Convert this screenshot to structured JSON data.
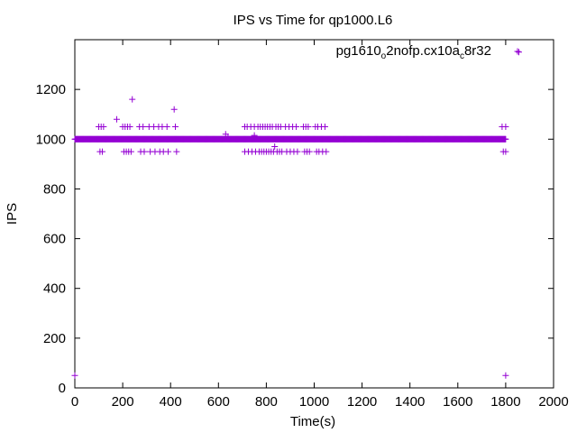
{
  "chart_data": {
    "type": "scatter",
    "title": "IPS vs Time for qp1000.L6",
    "xlabel": "Time(s)",
    "ylabel": "IPS",
    "xlim": [
      0,
      2000
    ],
    "ylim": [
      0,
      1400
    ],
    "xticks": [
      0,
      200,
      400,
      600,
      800,
      1000,
      1200,
      1400,
      1600,
      1800,
      2000
    ],
    "yticks": [
      0,
      200,
      400,
      600,
      800,
      1000,
      1200
    ],
    "grid": false,
    "legend_position": "top-right",
    "marker": "plus",
    "color": "#9400d3",
    "series": [
      {
        "name_parts": [
          "pg1610",
          "o",
          "2nofp.cx10a",
          "c",
          "8r32"
        ],
        "baseline": {
          "x_start": 0,
          "x_end": 1800,
          "step": 2,
          "y": 1000
        },
        "points": [
          [
            0,
            50
          ],
          [
            1800,
            50
          ],
          [
            1855,
            1350
          ],
          [
            240,
            1160
          ],
          [
            415,
            1120
          ],
          [
            175,
            1080
          ],
          [
            630,
            1020
          ],
          [
            640,
            1010
          ],
          [
            750,
            1015
          ],
          [
            835,
            970
          ],
          [
            100,
            1050
          ],
          [
            105,
            950
          ],
          [
            110,
            1050
          ],
          [
            115,
            950
          ],
          [
            120,
            1050
          ],
          [
            200,
            1050
          ],
          [
            205,
            950
          ],
          [
            210,
            1050
          ],
          [
            215,
            950
          ],
          [
            220,
            1050
          ],
          [
            225,
            950
          ],
          [
            230,
            1050
          ],
          [
            235,
            950
          ],
          [
            270,
            1050
          ],
          [
            275,
            950
          ],
          [
            285,
            1050
          ],
          [
            290,
            950
          ],
          [
            310,
            1050
          ],
          [
            315,
            950
          ],
          [
            330,
            1050
          ],
          [
            335,
            950
          ],
          [
            350,
            1050
          ],
          [
            355,
            950
          ],
          [
            365,
            1050
          ],
          [
            370,
            950
          ],
          [
            385,
            1050
          ],
          [
            390,
            950
          ],
          [
            420,
            1050
          ],
          [
            425,
            950
          ],
          [
            710,
            1050
          ],
          [
            710,
            950
          ],
          [
            720,
            1050
          ],
          [
            725,
            950
          ],
          [
            735,
            1050
          ],
          [
            740,
            950
          ],
          [
            750,
            1050
          ],
          [
            755,
            950
          ],
          [
            765,
            1050
          ],
          [
            770,
            950
          ],
          [
            775,
            1050
          ],
          [
            780,
            950
          ],
          [
            785,
            1050
          ],
          [
            790,
            950
          ],
          [
            795,
            1050
          ],
          [
            800,
            950
          ],
          [
            805,
            1050
          ],
          [
            810,
            950
          ],
          [
            815,
            1050
          ],
          [
            820,
            950
          ],
          [
            825,
            1050
          ],
          [
            830,
            950
          ],
          [
            840,
            1050
          ],
          [
            845,
            950
          ],
          [
            850,
            1050
          ],
          [
            855,
            950
          ],
          [
            860,
            1050
          ],
          [
            865,
            950
          ],
          [
            880,
            1050
          ],
          [
            885,
            950
          ],
          [
            895,
            1050
          ],
          [
            900,
            950
          ],
          [
            910,
            1050
          ],
          [
            915,
            950
          ],
          [
            925,
            1050
          ],
          [
            930,
            950
          ],
          [
            955,
            1050
          ],
          [
            960,
            950
          ],
          [
            965,
            1050
          ],
          [
            970,
            950
          ],
          [
            975,
            1050
          ],
          [
            980,
            950
          ],
          [
            1005,
            1050
          ],
          [
            1010,
            950
          ],
          [
            1015,
            1050
          ],
          [
            1020,
            950
          ],
          [
            1030,
            1050
          ],
          [
            1035,
            950
          ],
          [
            1045,
            1050
          ],
          [
            1050,
            950
          ],
          [
            1785,
            1050
          ],
          [
            1790,
            950
          ],
          [
            1800,
            1050
          ],
          [
            1800,
            950
          ]
        ]
      }
    ]
  }
}
